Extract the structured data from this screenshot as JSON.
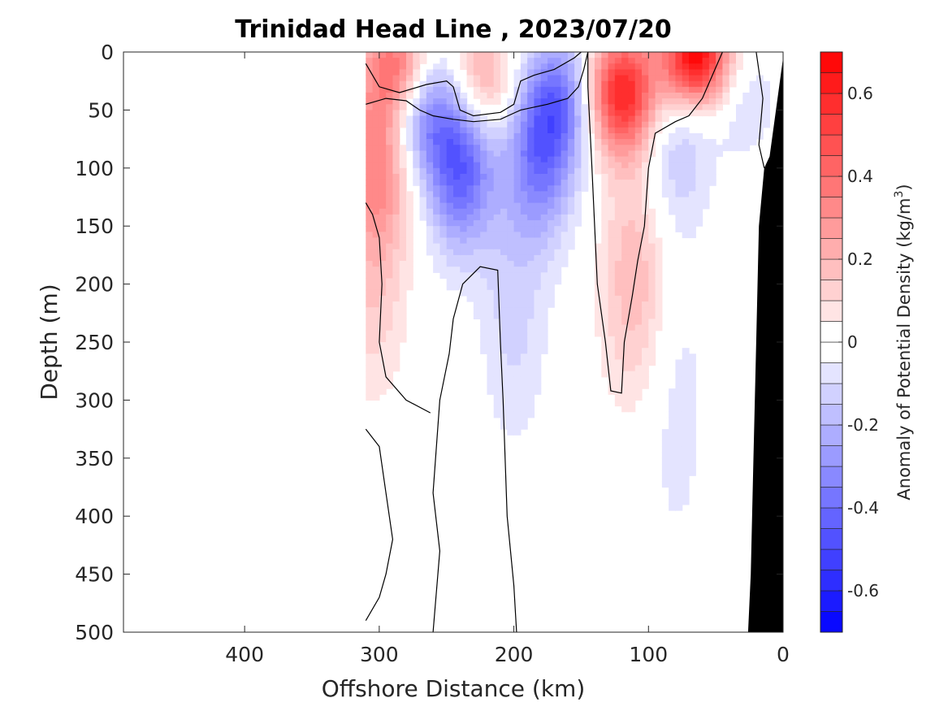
{
  "chart_data": {
    "type": "heatmap",
    "title": "Trinidad Head Line , 2023/07/20",
    "xlabel": "Offshore Distance (km)",
    "ylabel": "Depth (m)",
    "colorbar_label": "Anomaly of Potential Density (kg/m³)",
    "colorbar_label_parts": {
      "main": "Anomaly of Potential Density (kg/m",
      "superscript": "3",
      "close": ")"
    },
    "xlim": [
      490,
      0
    ],
    "ylim": [
      0,
      500
    ],
    "x_reversed": true,
    "y_reversed": true,
    "xticks": [
      400,
      300,
      200,
      100,
      0
    ],
    "xtick_labels": [
      "400",
      "300",
      "200",
      "100",
      "0"
    ],
    "yticks": [
      0,
      50,
      100,
      150,
      200,
      250,
      300,
      350,
      400,
      450,
      500
    ],
    "ytick_labels": [
      "0",
      "50",
      "100",
      "150",
      "200",
      "250",
      "300",
      "350",
      "400",
      "450",
      "500"
    ],
    "colorbar": {
      "range": [
        -0.7,
        0.7
      ],
      "levels": 28,
      "ticks": [
        -0.6,
        -0.4,
        -0.2,
        0,
        0.2,
        0.4,
        0.6
      ],
      "tick_labels": [
        "-0.6",
        "-0.4",
        "-0.2",
        "0",
        "0.2",
        "0.4",
        "0.6"
      ],
      "colormap": "blue-white-red",
      "neg_color": "#0000ff",
      "pos_color": "#ff0000",
      "zero_color": "#ffffff"
    },
    "data_extent_km": [
      310,
      0
    ],
    "anomaly_features": [
      {
        "x": 285,
        "y": 15,
        "value": 0.45
      },
      {
        "x": 225,
        "y": 25,
        "value": 0.3
      },
      {
        "x": 120,
        "y": 35,
        "value": 0.6
      },
      {
        "x": 65,
        "y": 5,
        "value": 0.7
      },
      {
        "x": 300,
        "y": 90,
        "value": 0.3
      },
      {
        "x": 305,
        "y": 190,
        "value": 0.15
      },
      {
        "x": 270,
        "y": 45,
        "value": -0.35
      },
      {
        "x": 240,
        "y": 95,
        "value": -0.45
      },
      {
        "x": 180,
        "y": 90,
        "value": -0.35
      },
      {
        "x": 165,
        "y": 40,
        "value": -0.3
      },
      {
        "x": 80,
        "y": 85,
        "value": -0.15
      },
      {
        "x": 110,
        "y": 195,
        "value": 0.2
      },
      {
        "x": 200,
        "y": 220,
        "value": -0.12
      },
      {
        "x": 30,
        "y": 40,
        "value": -0.1
      },
      {
        "x": 80,
        "y": 300,
        "value": -0.08
      }
    ],
    "zero_contours": [
      [
        [
          310,
          10
        ],
        [
          300,
          30
        ],
        [
          285,
          35
        ],
        [
          265,
          28
        ],
        [
          250,
          25
        ],
        [
          245,
          30
        ],
        [
          240,
          50
        ],
        [
          230,
          55
        ],
        [
          210,
          52
        ],
        [
          200,
          45
        ],
        [
          195,
          25
        ],
        [
          185,
          20
        ],
        [
          170,
          15
        ],
        [
          155,
          5
        ],
        [
          150,
          0
        ]
      ],
      [
        [
          310,
          45
        ],
        [
          295,
          40
        ],
        [
          280,
          42
        ],
        [
          270,
          50
        ],
        [
          260,
          55
        ],
        [
          245,
          58
        ],
        [
          230,
          60
        ],
        [
          210,
          58
        ],
        [
          195,
          50
        ],
        [
          175,
          45
        ],
        [
          160,
          40
        ],
        [
          152,
          30
        ],
        [
          148,
          15
        ],
        [
          145,
          0
        ]
      ],
      [
        [
          145,
          0
        ],
        [
          145,
          30
        ],
        [
          142,
          100
        ],
        [
          140,
          150
        ],
        [
          138,
          200
        ],
        [
          132,
          250
        ],
        [
          128,
          292
        ],
        [
          120,
          294
        ],
        [
          118,
          250
        ],
        [
          112,
          210
        ],
        [
          108,
          180
        ],
        [
          103,
          150
        ],
        [
          100,
          100
        ],
        [
          95,
          70
        ],
        [
          80,
          60
        ],
        [
          70,
          55
        ],
        [
          60,
          40
        ],
        [
          45,
          0
        ]
      ],
      [
        [
          310,
          130
        ],
        [
          305,
          140
        ],
        [
          300,
          160
        ],
        [
          298,
          200
        ],
        [
          300,
          250
        ],
        [
          295,
          280
        ],
        [
          280,
          300
        ],
        [
          262,
          311
        ]
      ],
      [
        [
          310,
          325
        ],
        [
          300,
          340
        ],
        [
          295,
          380
        ],
        [
          290,
          420
        ],
        [
          295,
          450
        ],
        [
          300,
          470
        ],
        [
          310,
          490
        ]
      ],
      [
        [
          260,
          500
        ],
        [
          255,
          430
        ],
        [
          260,
          380
        ],
        [
          255,
          300
        ],
        [
          248,
          260
        ],
        [
          245,
          230
        ],
        [
          238,
          200
        ],
        [
          225,
          185
        ],
        [
          212,
          188
        ],
        [
          210,
          250
        ],
        [
          208,
          300
        ],
        [
          205,
          400
        ],
        [
          200,
          460
        ],
        [
          198,
          500
        ]
      ],
      [
        [
          20,
          0
        ],
        [
          15,
          40
        ],
        [
          18,
          80
        ],
        [
          14,
          100
        ]
      ]
    ],
    "seafloor": {
      "label": "bathymetry",
      "color": "#000000",
      "profile": [
        [
          0,
          5
        ],
        [
          10,
          90
        ],
        [
          14,
          100
        ],
        [
          18,
          150
        ],
        [
          20,
          250
        ],
        [
          22,
          350
        ],
        [
          24,
          450
        ],
        [
          26,
          500
        ]
      ]
    }
  }
}
